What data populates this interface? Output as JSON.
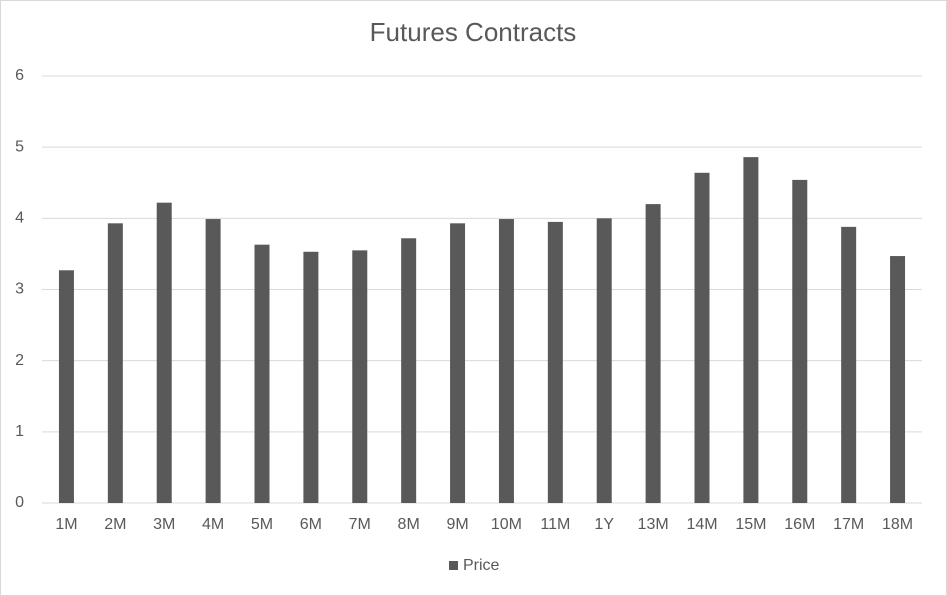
{
  "chart_data": {
    "type": "bar",
    "title": "Futures Contracts",
    "categories": [
      "1M",
      "2M",
      "3M",
      "4M",
      "5M",
      "6M",
      "7M",
      "8M",
      "9M",
      "10M",
      "11M",
      "1Y",
      "13M",
      "14M",
      "15M",
      "16M",
      "17M",
      "18M"
    ],
    "series": [
      {
        "name": "Price",
        "color": "#595959",
        "values": [
          3.27,
          3.93,
          4.22,
          3.99,
          3.63,
          3.53,
          3.55,
          3.72,
          3.93,
          3.99,
          3.95,
          4.0,
          4.2,
          4.64,
          4.86,
          4.54,
          3.88,
          3.47
        ]
      }
    ],
    "ylim": [
      0,
      6
    ],
    "yticks": [
      0,
      1,
      2,
      3,
      4,
      5,
      6
    ],
    "grid": true,
    "legend": "bottom"
  }
}
